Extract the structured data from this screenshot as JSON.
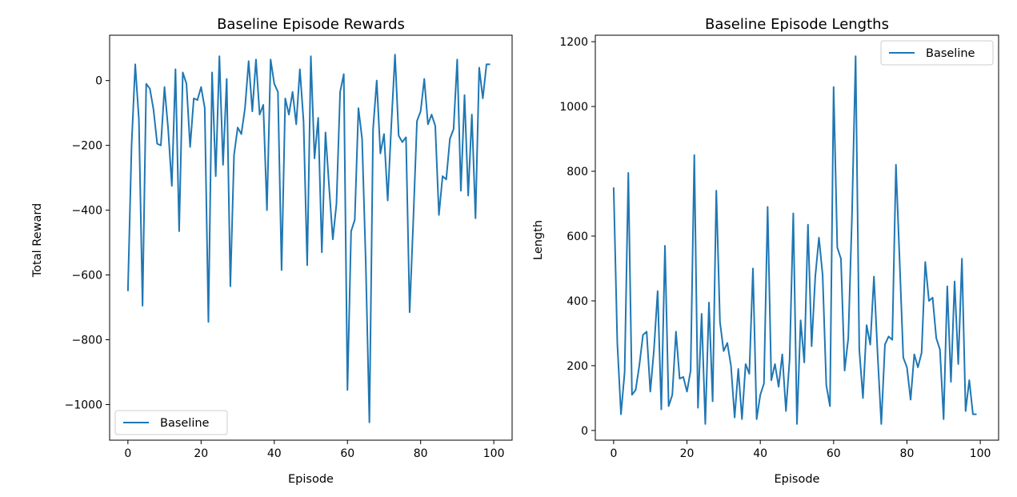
{
  "colors": {
    "series": "#1f77b4",
    "axes": "#000000",
    "background": "#ffffff",
    "legend_border": "#cccccc"
  },
  "chart_data": [
    {
      "type": "line",
      "title": "Baseline Episode Rewards",
      "xlabel": "Episode",
      "ylabel": "Total Reward",
      "xlim": [
        -5,
        105
      ],
      "ylim": [
        -1110,
        140
      ],
      "xticks": [
        0,
        20,
        40,
        60,
        80,
        100
      ],
      "xtick_labels": [
        "0",
        "20",
        "40",
        "60",
        "80",
        "100"
      ],
      "yticks": [
        -1000,
        -800,
        -600,
        -400,
        -200,
        0
      ],
      "ytick_labels": [
        "−1000",
        "−800",
        "−600",
        "−400",
        "−200",
        "0"
      ],
      "grid": false,
      "legend_position": "lower-left",
      "series": [
        {
          "name": "Baseline",
          "color": "#1f77b4",
          "x": [
            0,
            1,
            2,
            3,
            4,
            5,
            6,
            7,
            8,
            9,
            10,
            11,
            12,
            13,
            14,
            15,
            16,
            17,
            18,
            19,
            20,
            21,
            22,
            23,
            24,
            25,
            26,
            27,
            28,
            29,
            30,
            31,
            32,
            33,
            34,
            35,
            36,
            37,
            38,
            39,
            40,
            41,
            42,
            43,
            44,
            45,
            46,
            47,
            48,
            49,
            50,
            51,
            52,
            53,
            54,
            55,
            56,
            57,
            58,
            59,
            60,
            61,
            62,
            63,
            64,
            65,
            66,
            67,
            68,
            69,
            70,
            71,
            72,
            73,
            74,
            75,
            76,
            77,
            78,
            79,
            80,
            81,
            82,
            83,
            84,
            85,
            86,
            87,
            88,
            89,
            90,
            91,
            92,
            93,
            94,
            95,
            96,
            97,
            98,
            99
          ],
          "values": [
            -650,
            -200,
            50,
            -120,
            -695,
            -10,
            -25,
            -90,
            -195,
            -200,
            -20,
            -150,
            -325,
            35,
            -465,
            25,
            -10,
            -205,
            -55,
            -60,
            -20,
            -85,
            -745,
            25,
            -295,
            75,
            -260,
            5,
            -635,
            -230,
            -145,
            -165,
            -85,
            60,
            -95,
            65,
            -105,
            -75,
            -400,
            65,
            -10,
            -35,
            -585,
            -55,
            -105,
            -35,
            -135,
            35,
            -125,
            -570,
            75,
            -240,
            -115,
            -530,
            -160,
            -330,
            -490,
            -380,
            -35,
            20,
            -955,
            -465,
            -430,
            -85,
            -180,
            -560,
            -1055,
            -150,
            0,
            -225,
            -165,
            -370,
            -135,
            80,
            -170,
            -190,
            -175,
            -715,
            -430,
            -125,
            -95,
            5,
            -135,
            -105,
            -140,
            -415,
            -295,
            -305,
            -180,
            -150,
            65,
            -340,
            -45,
            -355,
            -105,
            -425,
            40,
            -55,
            50,
            50
          ]
        }
      ]
    },
    {
      "type": "line",
      "title": "Baseline Episode Lengths",
      "xlabel": "Episode",
      "ylabel": "Length",
      "xlim": [
        -5,
        105
      ],
      "ylim": [
        -30,
        1220
      ],
      "xticks": [
        0,
        20,
        40,
        60,
        80,
        100
      ],
      "xtick_labels": [
        "0",
        "20",
        "40",
        "60",
        "80",
        "100"
      ],
      "yticks": [
        0,
        200,
        400,
        600,
        800,
        1000,
        1200
      ],
      "ytick_labels": [
        "0",
        "200",
        "400",
        "600",
        "800",
        "1000",
        "1200"
      ],
      "grid": false,
      "legend_position": "upper-right",
      "series": [
        {
          "name": "Baseline",
          "color": "#1f77b4",
          "x": [
            0,
            1,
            2,
            3,
            4,
            5,
            6,
            7,
            8,
            9,
            10,
            11,
            12,
            13,
            14,
            15,
            16,
            17,
            18,
            19,
            20,
            21,
            22,
            23,
            24,
            25,
            26,
            27,
            28,
            29,
            30,
            31,
            32,
            33,
            34,
            35,
            36,
            37,
            38,
            39,
            40,
            41,
            42,
            43,
            44,
            45,
            46,
            47,
            48,
            49,
            50,
            51,
            52,
            53,
            54,
            55,
            56,
            57,
            58,
            59,
            60,
            61,
            62,
            63,
            64,
            65,
            66,
            67,
            68,
            69,
            70,
            71,
            72,
            73,
            74,
            75,
            76,
            77,
            78,
            79,
            80,
            81,
            82,
            83,
            84,
            85,
            86,
            87,
            88,
            89,
            90,
            91,
            92,
            93,
            94,
            95,
            96,
            97,
            98,
            99
          ],
          "values": [
            750,
            270,
            50,
            180,
            795,
            110,
            125,
            200,
            295,
            305,
            120,
            250,
            430,
            65,
            570,
            75,
            110,
            305,
            160,
            165,
            120,
            185,
            850,
            70,
            360,
            20,
            395,
            90,
            740,
            335,
            245,
            270,
            200,
            40,
            190,
            35,
            205,
            175,
            500,
            35,
            110,
            145,
            690,
            155,
            205,
            135,
            235,
            60,
            220,
            670,
            20,
            340,
            210,
            635,
            260,
            475,
            595,
            480,
            140,
            75,
            1060,
            565,
            530,
            185,
            285,
            660,
            1155,
            250,
            100,
            325,
            265,
            475,
            235,
            20,
            265,
            290,
            280,
            820,
            525,
            225,
            195,
            95,
            235,
            195,
            240,
            520,
            400,
            410,
            285,
            250,
            35,
            445,
            150,
            460,
            205,
            530,
            60,
            155,
            50,
            50
          ]
        }
      ]
    }
  ]
}
